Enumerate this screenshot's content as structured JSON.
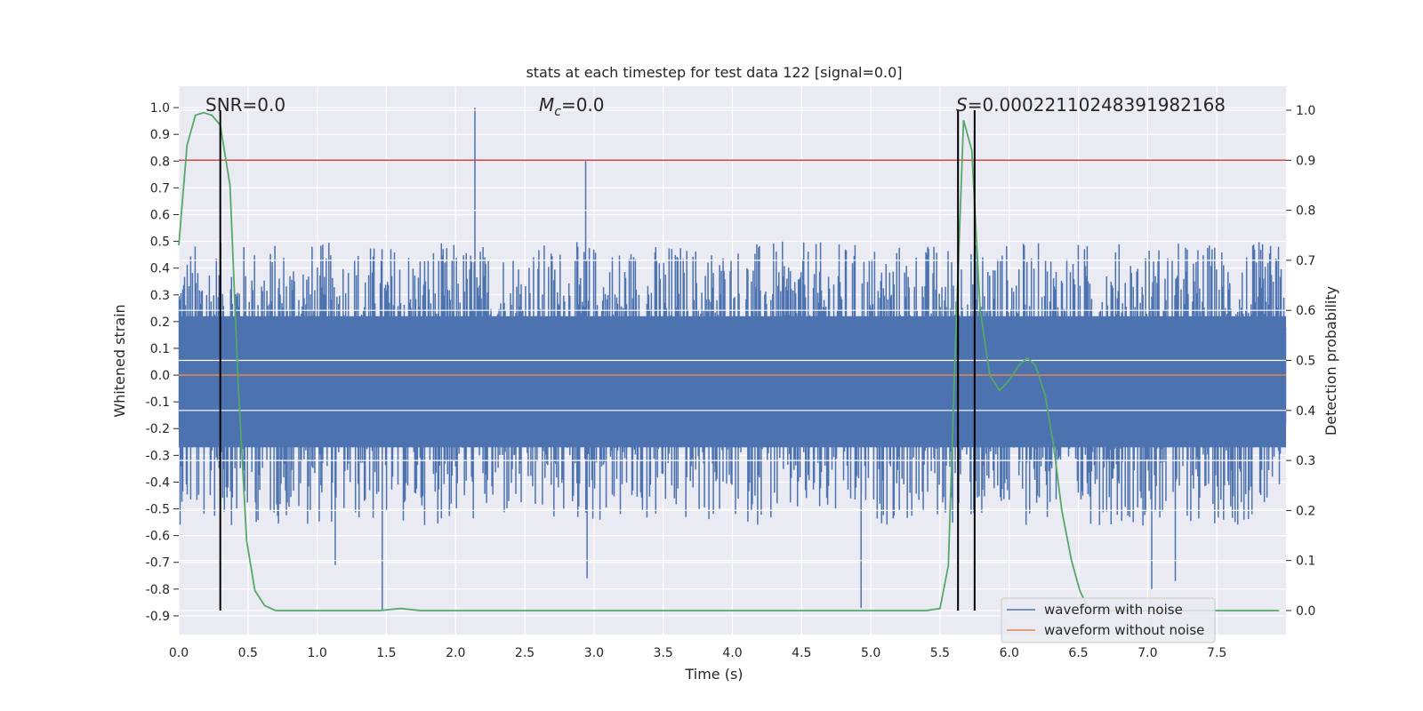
{
  "chart_data": {
    "type": "line",
    "title": "stats at each timestep for test data 122 [signal=0.0]",
    "xlabel": "Time (s)",
    "ylabel_left": "Whitened strain",
    "ylabel_right": "Detection probability",
    "xlim": [
      0.0,
      8.0
    ],
    "ylim_left": [
      -0.97,
      1.08
    ],
    "ylim_right": [
      -0.048,
      1.048
    ],
    "grid": true,
    "legend_placement": "lower-right",
    "x_ticks": [
      "0.0",
      "0.5",
      "1.0",
      "1.5",
      "2.0",
      "2.5",
      "3.0",
      "3.5",
      "4.0",
      "4.5",
      "5.0",
      "5.5",
      "6.0",
      "6.5",
      "7.0",
      "7.5"
    ],
    "y_left_ticks": [
      "1.0",
      "0.9",
      "0.8",
      "0.7",
      "0.6",
      "0.5",
      "0.4",
      "0.3",
      "0.2",
      "0.1",
      "0.0",
      "-0.1",
      "-0.2",
      "-0.3",
      "-0.4",
      "-0.5",
      "-0.6",
      "-0.7",
      "-0.8",
      "-0.9"
    ],
    "y_right_ticks": [
      "1.0",
      "0.9",
      "0.8",
      "0.7",
      "0.6",
      "0.5",
      "0.4",
      "0.3",
      "0.2",
      "0.1",
      "0.0"
    ],
    "annotations": {
      "snr": "SNR=0.0",
      "mc_symbol": "M",
      "mc_subscript": "c",
      "mc_value": "=0.0",
      "s_symbol": "S",
      "s_value": "=0.00022110248391982168"
    },
    "threshold_probability": 0.9,
    "vertical_markers_x": [
      0.3,
      5.63,
      5.75
    ],
    "series": [
      {
        "name": "waveform with noise",
        "color": "#4c72b0",
        "axis": "left",
        "envelope_upper": 0.4,
        "envelope_lower": -0.45,
        "spikes": [
          {
            "x": 2.14,
            "y": 1.0
          },
          {
            "x": 2.94,
            "y": 0.8
          },
          {
            "x": 1.47,
            "y": -0.88
          },
          {
            "x": 4.93,
            "y": -0.87
          },
          {
            "x": 2.95,
            "y": -0.76
          },
          {
            "x": 7.03,
            "y": -0.8
          },
          {
            "x": 7.2,
            "y": -0.77
          },
          {
            "x": 1.13,
            "y": -0.71
          }
        ]
      },
      {
        "name": "waveform without noise",
        "color": "#dd8452",
        "axis": "left",
        "x": [
          0.0,
          8.0
        ],
        "y": [
          0.0,
          0.0
        ]
      },
      {
        "name": "detection probability",
        "color": "#55a868",
        "axis": "right",
        "x": [
          0.0,
          0.06,
          0.12,
          0.18,
          0.24,
          0.3,
          0.37,
          0.43,
          0.49,
          0.55,
          0.62,
          0.7,
          0.8,
          1.0,
          1.45,
          1.6,
          1.75,
          2.5,
          3.5,
          4.5,
          5.0,
          5.4,
          5.5,
          5.56,
          5.61,
          5.67,
          5.73,
          5.79,
          5.86,
          5.93,
          6.0,
          6.07,
          6.13,
          6.19,
          6.26,
          6.32,
          6.38,
          6.45,
          6.51,
          6.58,
          6.64,
          6.7,
          7.0,
          7.5,
          7.95
        ],
        "y": [
          0.73,
          0.93,
          0.99,
          0.995,
          0.99,
          0.97,
          0.85,
          0.45,
          0.14,
          0.04,
          0.01,
          0.0,
          0.0,
          0.0,
          0.0,
          0.004,
          0.0,
          0.0,
          0.0,
          0.0,
          0.0,
          0.0,
          0.004,
          0.09,
          0.52,
          0.98,
          0.92,
          0.6,
          0.47,
          0.44,
          0.46,
          0.49,
          0.505,
          0.49,
          0.43,
          0.33,
          0.2,
          0.1,
          0.04,
          0.0,
          0.0,
          0.0,
          0.0,
          0.0,
          0.0
        ]
      }
    ]
  }
}
